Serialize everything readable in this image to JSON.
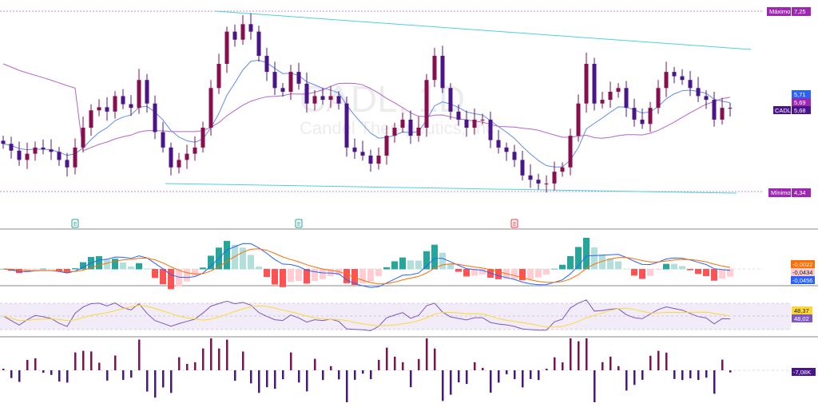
{
  "chart_data": {
    "type": "candlestick",
    "symbol": "CADL",
    "interval": "1D",
    "company": "Candel Therapeutics, Inc",
    "watermark": "CADL, 1D",
    "closes": [
      5.11,
      5.0,
      4.85,
      4.95,
      5.05,
      5.02,
      4.98,
      4.85,
      4.73,
      5.05,
      5.37,
      5.65,
      5.7,
      5.63,
      5.88,
      5.75,
      5.69,
      6.14,
      5.76,
      5.3,
      5.05,
      4.73,
      4.85,
      4.95,
      5.05,
      5.37,
      6.01,
      6.4,
      6.92,
      6.79,
      7.04,
      6.92,
      6.53,
      6.27,
      6.01,
      5.95,
      6.27,
      6.08,
      5.76,
      5.88,
      5.82,
      5.88,
      5.76,
      5.05,
      4.98,
      4.92,
      4.79,
      4.92,
      5.24,
      5.37,
      5.5,
      5.24,
      5.37,
      6.14,
      6.53,
      6.01,
      5.63,
      5.5,
      5.37,
      5.5,
      5.5,
      5.17,
      5.05,
      4.98,
      4.85,
      4.6,
      4.53,
      4.47,
      4.47,
      4.66,
      4.73,
      5.24,
      5.76,
      6.4,
      5.76,
      5.82,
      5.95,
      6.01,
      5.69,
      5.5,
      5.43,
      5.69,
      6.01,
      6.27,
      6.2,
      6.14,
      6.01,
      5.88,
      5.82,
      5.5,
      5.69,
      5.68
    ],
    "ylim": [
      4.34,
      7.25
    ],
    "max_label": "Máximo",
    "max_value": "7,25",
    "min_label": "Mínimo",
    "min_value": "4,34",
    "last_price": "5,68",
    "ma_fast_value": "5,71",
    "ma_slow_value": "5,69",
    "colors": {
      "up": "#880e4f",
      "down": "#4a148c",
      "ma_fast": "#5b8def",
      "ma_slow": "#b565c9",
      "trend": "#4dd0e1"
    },
    "earnings_markers": [
      {
        "index": 9,
        "label": "E",
        "color": "#26a69a"
      },
      {
        "index": 37,
        "label": "E",
        "color": "#26a69a"
      },
      {
        "index": 64,
        "label": "E",
        "color": "#f23645"
      }
    ],
    "macd": {
      "macd_value": "-0,0456",
      "signal_value": "-0,0022",
      "hist_value": "-0,0434"
    },
    "rsi": {
      "rsi_value": "48,02",
      "ma_value": "48,37"
    },
    "volume_osc": {
      "value": "-7,08K"
    }
  }
}
